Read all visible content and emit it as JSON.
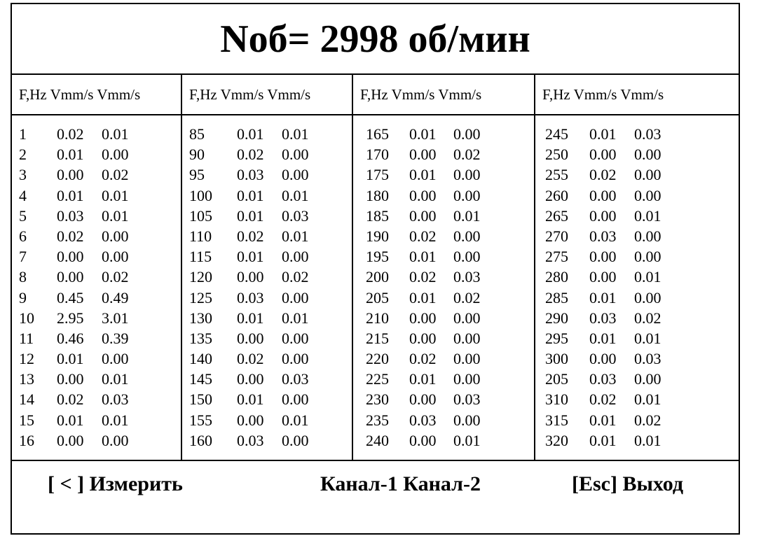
{
  "title": "Nоб= 2998 об/мин",
  "header": "F,Hz Vmm/s Vmm/s",
  "columns": [
    {
      "rows": [
        [
          "1",
          "0.02",
          "0.01"
        ],
        [
          "2",
          "0.01",
          "0.00"
        ],
        [
          "3",
          "0.00",
          "0.02"
        ],
        [
          "4",
          "0.01",
          "0.01"
        ],
        [
          "5",
          "0.03",
          "0.01"
        ],
        [
          "6",
          "0.02",
          "0.00"
        ],
        [
          "7",
          "0.00",
          "0.00"
        ],
        [
          "8",
          "0.00",
          "0.02"
        ],
        [
          "9",
          "0.45",
          "0.49"
        ],
        [
          "10",
          "2.95",
          "3.01"
        ],
        [
          "11",
          "0.46",
          "0.39"
        ],
        [
          "12",
          "0.01",
          "0.00"
        ],
        [
          "13",
          "0.00",
          "0.01"
        ],
        [
          "14",
          "0.02",
          "0.03"
        ],
        [
          "15",
          "0.01",
          "0.01"
        ],
        [
          "16",
          "0.00",
          "0.00"
        ]
      ]
    },
    {
      "rows": [
        [
          "85",
          "0.01",
          "0.01"
        ],
        [
          "90",
          "0.02",
          "0.00"
        ],
        [
          "95",
          "0.03",
          "0.00"
        ],
        [
          "100",
          "0.01",
          "0.01"
        ],
        [
          "105",
          "0.01",
          "0.03"
        ],
        [
          "110",
          "0.02",
          "0.01"
        ],
        [
          "115",
          "0.01",
          "0.00"
        ],
        [
          "120",
          "0.00",
          "0.02"
        ],
        [
          "125",
          "0.03",
          "0.00"
        ],
        [
          "130",
          "0.01",
          "0.01"
        ],
        [
          "135",
          "0.00",
          "0.00"
        ],
        [
          "140",
          "0.02",
          "0.00"
        ],
        [
          "145",
          "0.00",
          "0.03"
        ],
        [
          "150",
          "0.01",
          "0.00"
        ],
        [
          "155",
          "0.00",
          "0.01"
        ],
        [
          "160",
          "0.03",
          "0.00"
        ]
      ]
    },
    {
      "rows": [
        [
          "165",
          "0.01",
          "0.00"
        ],
        [
          "170",
          "0.00",
          "0.02"
        ],
        [
          "175",
          "0.01",
          "0.00"
        ],
        [
          "180",
          "0.00",
          "0.00"
        ],
        [
          "185",
          "0.00",
          "0.01"
        ],
        [
          "190",
          "0.02",
          "0.00"
        ],
        [
          "195",
          "0.01",
          "0.00"
        ],
        [
          "200",
          "0.02",
          "0.03"
        ],
        [
          "205",
          "0.01",
          "0.02"
        ],
        [
          "210",
          "0.00",
          "0.00"
        ],
        [
          "215",
          "0.00",
          "0.00"
        ],
        [
          "220",
          "0.02",
          "0.00"
        ],
        [
          "225",
          "0.01",
          "0.00"
        ],
        [
          "230",
          "0.00",
          "0.03"
        ],
        [
          "235",
          "0.03",
          "0.00"
        ],
        [
          "240",
          "0.00",
          "0.01"
        ]
      ]
    },
    {
      "rows": [
        [
          "245",
          "0.01",
          "0.03"
        ],
        [
          "250",
          "0.00",
          "0.00"
        ],
        [
          "255",
          "0.02",
          "0.00"
        ],
        [
          "260",
          "0.00",
          "0.00"
        ],
        [
          "265",
          "0.00",
          "0.01"
        ],
        [
          "270",
          "0.03",
          "0.00"
        ],
        [
          "275",
          "0.00",
          "0.00"
        ],
        [
          "280",
          "0.00",
          "0.01"
        ],
        [
          "285",
          "0.01",
          "0.00"
        ],
        [
          "290",
          "0.03",
          "0.02"
        ],
        [
          "295",
          "0.01",
          "0.01"
        ],
        [
          "300",
          "0.00",
          "0.03"
        ],
        [
          "205",
          "0.03",
          "0.00"
        ],
        [
          "310",
          "0.02",
          "0.01"
        ],
        [
          "315",
          "0.01",
          "0.02"
        ],
        [
          "320",
          "0.01",
          "0.01"
        ]
      ]
    }
  ],
  "footer": {
    "measure_label": "[ < ] Измерить",
    "channels_label": "Канал-1 Канал-2",
    "exit_label": "[Esc] Выход"
  }
}
